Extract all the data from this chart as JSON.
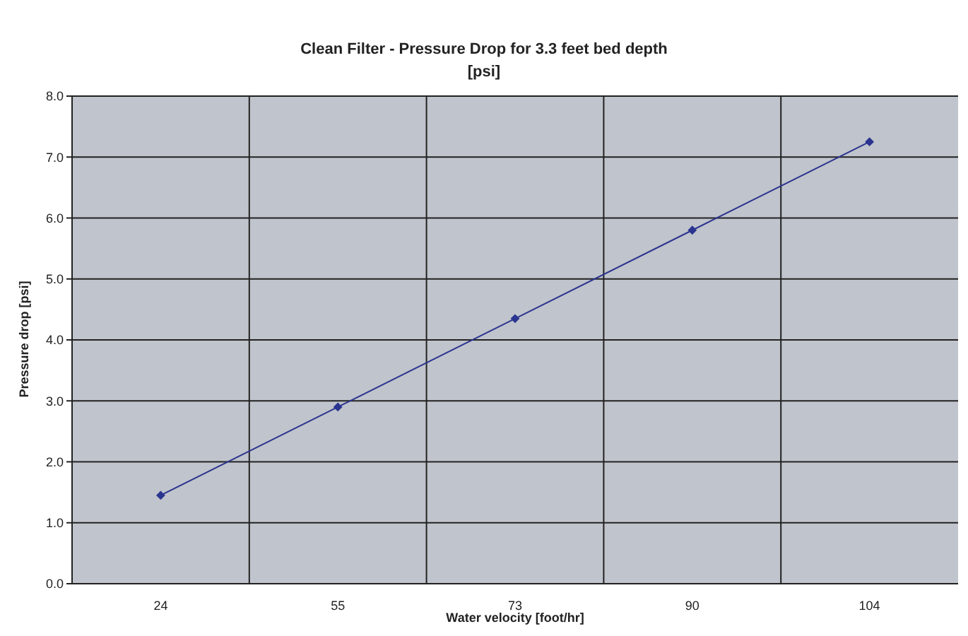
{
  "chart_data": {
    "type": "line",
    "title": "Clean Filter - Pressure Drop for 3.3 feet bed depth",
    "subtitle": "[psi]",
    "xlabel": "Water velocity [foot/hr]",
    "ylabel": "Pressure drop [psi]",
    "categories": [
      "24",
      "55",
      "73",
      "90",
      "104"
    ],
    "series": [
      {
        "color": "#2b3590",
        "values": [
          1.45,
          2.9,
          4.35,
          5.8,
          7.25
        ]
      }
    ],
    "ylim": [
      0,
      8
    ],
    "yticks": [
      {
        "value": 0,
        "label": "0.0"
      },
      {
        "value": 1,
        "label": "1.0"
      },
      {
        "value": 2,
        "label": "2.0"
      },
      {
        "value": 3,
        "label": "3.0"
      },
      {
        "value": 4,
        "label": "4.0"
      },
      {
        "value": 5,
        "label": "5.0"
      },
      {
        "value": 6,
        "label": "6.0"
      },
      {
        "value": 7,
        "label": "7.0"
      },
      {
        "value": 8,
        "label": "8.0"
      }
    ],
    "grid": true,
    "legend": false,
    "marker": "diamond",
    "line_style": "solid"
  }
}
